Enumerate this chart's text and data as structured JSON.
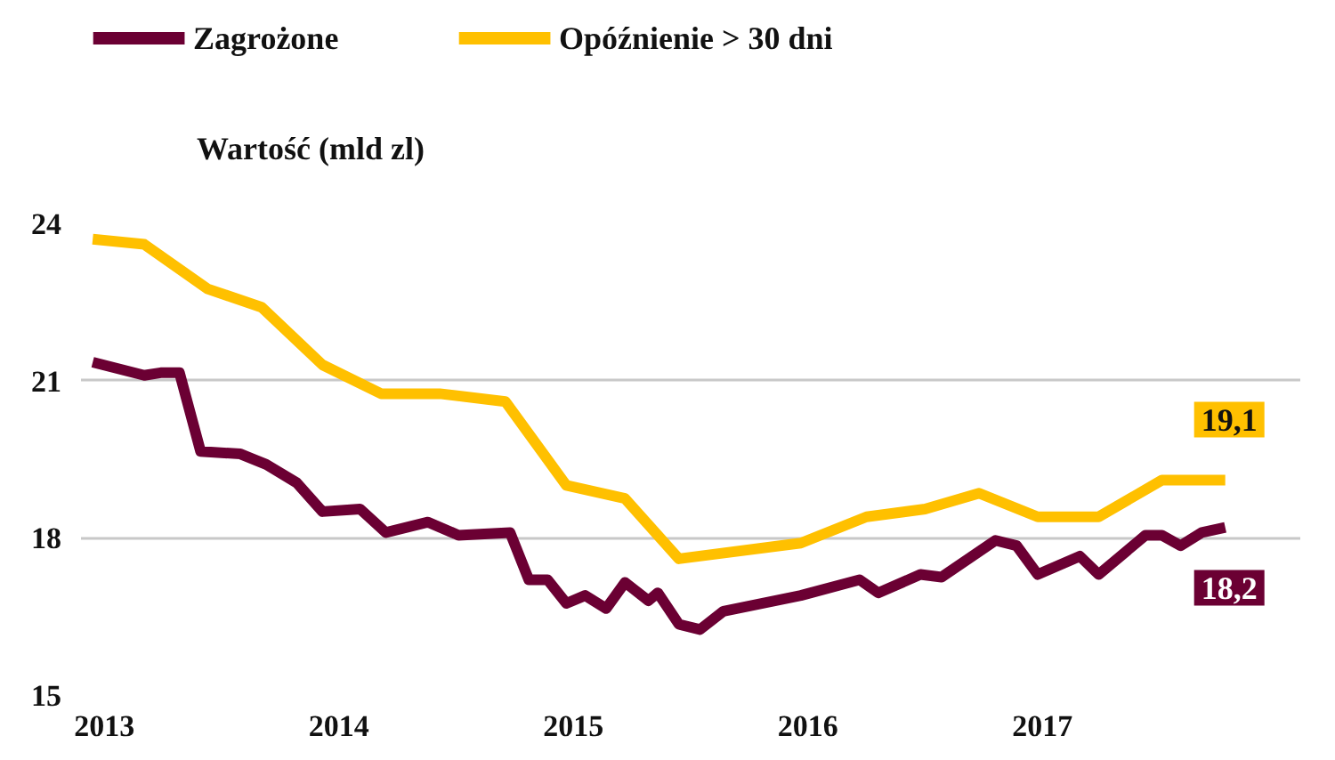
{
  "chart_data": {
    "type": "line",
    "ylabel": "Wartość (mld zl)",
    "legend": "top left",
    "grid": "y",
    "marker": "none",
    "line_style": "solid",
    "xlim": [
      2012.9,
      2018.1
    ],
    "ylim": [
      15,
      24
    ],
    "xticks": [
      2013,
      2014,
      2015,
      2016,
      2017
    ],
    "yticks": [
      15,
      18,
      21,
      24
    ],
    "series": [
      {
        "name": "Zagrożone",
        "color": "#6b0033",
        "x": [
          2012.95,
          2013.17,
          2013.24,
          2013.32,
          2013.41,
          2013.58,
          2013.69,
          2013.82,
          2013.93,
          2014.09,
          2014.2,
          2014.38,
          2014.51,
          2014.73,
          2014.81,
          2014.89,
          2014.97,
          2015.05,
          2015.14,
          2015.22,
          2015.32,
          2015.36,
          2015.45,
          2015.54,
          2015.64,
          2015.97,
          2016.22,
          2016.3,
          2016.48,
          2016.57,
          2016.8,
          2016.89,
          2016.98,
          2017.16,
          2017.24,
          2017.44,
          2017.51,
          2017.59,
          2017.68,
          2017.78
        ],
        "values": [
          21.35,
          21.1,
          21.15,
          21.15,
          19.65,
          19.6,
          19.4,
          19.05,
          18.5,
          18.55,
          18.1,
          18.3,
          18.05,
          18.1,
          17.2,
          17.2,
          16.75,
          16.9,
          16.65,
          17.15,
          16.8,
          16.95,
          16.35,
          16.25,
          16.6,
          16.9,
          17.2,
          16.95,
          17.3,
          17.25,
          17.95,
          17.85,
          17.3,
          17.65,
          17.3,
          18.05,
          18.05,
          17.85,
          18.1,
          18.2
        ],
        "value_labels": [
          null,
          null,
          null,
          null,
          null,
          null,
          null,
          null,
          null,
          null,
          null,
          null,
          null,
          null,
          null,
          null,
          null,
          null,
          null,
          null,
          null,
          null,
          null,
          null,
          null,
          null,
          null,
          null,
          null,
          null,
          null,
          null,
          null,
          null,
          null,
          null,
          null,
          null,
          null,
          "18,2"
        ]
      },
      {
        "name": "Opóźnienie > 30 dni",
        "color": "#ffc000",
        "x": [
          2012.95,
          2013.17,
          2013.44,
          2013.67,
          2013.93,
          2014.18,
          2014.43,
          2014.71,
          2014.97,
          2015.22,
          2015.45,
          2015.97,
          2016.25,
          2016.5,
          2016.73,
          2016.98,
          2017.24,
          2017.51,
          2017.78
        ],
        "values": [
          23.7,
          23.6,
          22.75,
          22.4,
          21.3,
          20.75,
          20.75,
          20.6,
          19.0,
          18.75,
          17.6,
          17.9,
          18.4,
          18.55,
          18.85,
          18.4,
          18.4,
          19.1,
          19.1
        ],
        "value_labels": [
          null,
          null,
          null,
          null,
          null,
          null,
          null,
          null,
          null,
          null,
          null,
          null,
          null,
          null,
          null,
          null,
          null,
          null,
          "19,1"
        ]
      }
    ]
  }
}
